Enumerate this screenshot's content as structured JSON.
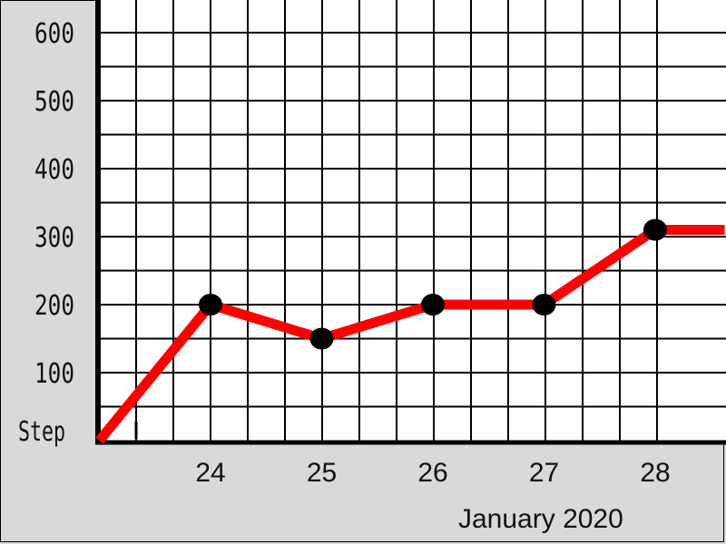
{
  "chart_data": {
    "type": "line",
    "title": "",
    "ylabel": "Step",
    "xlabel": "January 2020",
    "x_tick_labels": [
      "24",
      "25",
      "26",
      "27",
      "28"
    ],
    "y_tick_labels": [
      "100",
      "200",
      "300",
      "400",
      "500",
      "600"
    ],
    "ylim": [
      0,
      640
    ],
    "grid": true,
    "series": [
      {
        "color": "#ff0000",
        "marker_color": "#000000",
        "points": [
          {
            "x": "2020-01-23",
            "y": 0,
            "marker": false
          },
          {
            "x": "2020-01-24",
            "y": 200,
            "marker": true
          },
          {
            "x": "2020-01-25",
            "y": 150,
            "marker": true
          },
          {
            "x": "2020-01-26",
            "y": 200,
            "marker": true
          },
          {
            "x": "2020-01-27",
            "y": 200,
            "marker": true
          },
          {
            "x": "2020-01-28",
            "y": 310,
            "marker": true
          },
          {
            "x": "2020-01-28T15:00",
            "y": 310,
            "marker": false
          }
        ]
      }
    ]
  }
}
